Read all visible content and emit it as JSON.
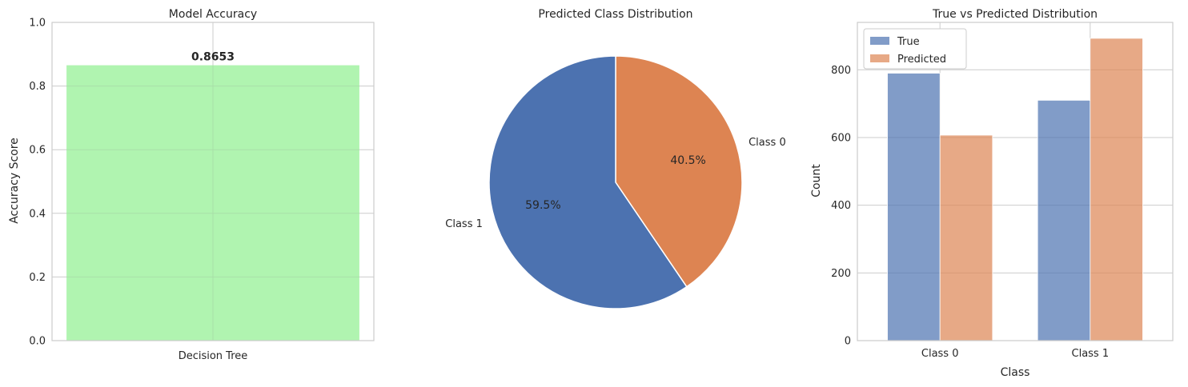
{
  "chart_data": [
    {
      "type": "bar",
      "title": "Model Accuracy",
      "ylabel": "Accuracy Score",
      "xlabel": "",
      "categories": [
        "Decision Tree"
      ],
      "values": [
        0.8653
      ],
      "data_labels": [
        "0.8653"
      ],
      "ylim": [
        0,
        1.0
      ],
      "yticks": [
        0.0,
        0.2,
        0.4,
        0.6,
        0.8,
        1.0
      ],
      "ytick_labels": [
        "0.0",
        "0.2",
        "0.4",
        "0.6",
        "0.8",
        "1.0"
      ],
      "color": "#b0f4b0",
      "grid": true
    },
    {
      "type": "pie",
      "title": "Predicted Class Distribution",
      "labels": [
        "Class 0",
        "Class 1"
      ],
      "values": [
        40.5,
        59.5
      ],
      "pct_labels": [
        "40.5%",
        "59.5%"
      ],
      "colors": [
        "#dd8452",
        "#4c72b0"
      ],
      "start_angle_deg": 90,
      "direction": "clockwise"
    },
    {
      "type": "bar",
      "title": "True vs Predicted Distribution",
      "xlabel": "Class",
      "ylabel": "Count",
      "categories": [
        "Class 0",
        "Class 1"
      ],
      "series": [
        {
          "name": "True",
          "values": [
            790,
            710
          ],
          "color": "#4c72b0"
        },
        {
          "name": "Predicted",
          "values": [
            607,
            893
          ],
          "color": "#dd8452"
        }
      ],
      "ylim": [
        0,
        940
      ],
      "yticks": [
        0,
        200,
        400,
        600,
        800
      ],
      "ytick_labels": [
        "0",
        "200",
        "400",
        "600",
        "800"
      ],
      "legend": "top-left",
      "grid": true
    }
  ]
}
